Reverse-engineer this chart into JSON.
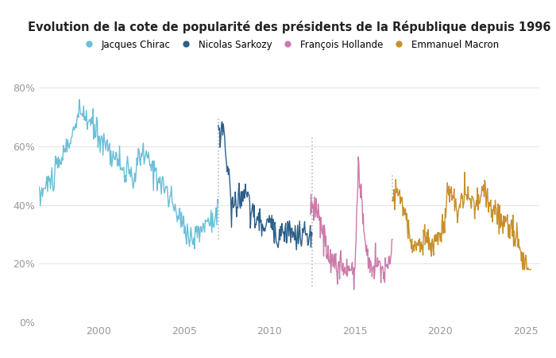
{
  "title": "Evolution de la cote de popularité des présidents de la République depuis 1996",
  "title_fontsize": 10.5,
  "background_color": "#ffffff",
  "grid_color": "#e5e5e5",
  "yticks": [
    0,
    20,
    40,
    60,
    80
  ],
  "xlim": [
    1996.5,
    2025.8
  ],
  "ylim": [
    0,
    88
  ],
  "series": [
    {
      "name": "Jacques Chirac",
      "color": "#6bbfd9",
      "start_year": 1996.5,
      "end_year": 2007.0
    },
    {
      "name": "Nicolas Sarkozy",
      "color": "#2c5f8a",
      "start_year": 2007.0,
      "end_year": 2012.5
    },
    {
      "name": "François Hollande",
      "color": "#cc7aaa",
      "start_year": 2012.4,
      "end_year": 2017.2
    },
    {
      "name": "Emmanuel Macron",
      "color": "#c8902a",
      "start_year": 2017.2,
      "end_year": 2025.3
    }
  ],
  "axis_tick_color": "#999999",
  "transition_color": "#bbbbbb",
  "transition_years": [
    2007.0,
    2012.5,
    2017.2
  ],
  "transition_ymins": [
    0.32,
    0.14,
    0.47
  ],
  "transition_ymaxs": [
    0.8,
    0.72,
    0.57
  ]
}
